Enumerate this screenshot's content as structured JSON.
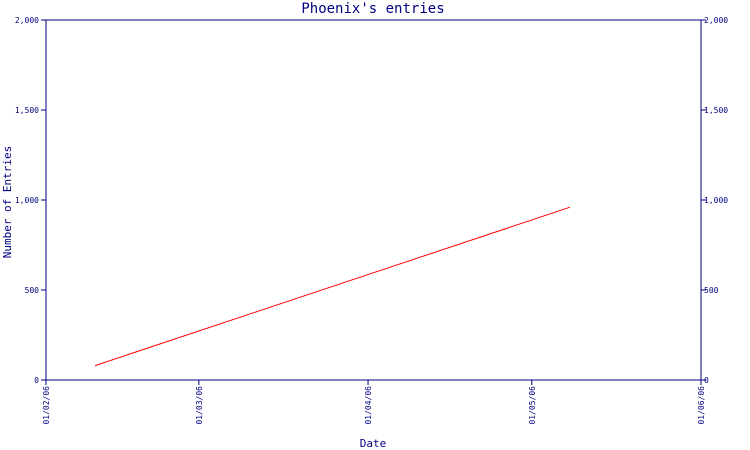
{
  "chart_data": {
    "type": "line",
    "title": "Phoenix's entries",
    "xlabel": "Date",
    "ylabel": "Number of Entries",
    "xlim": [
      "2006-02-01",
      "2006-06-01"
    ],
    "ylim": [
      0,
      2000
    ],
    "x_ticks": [
      "01/02/06",
      "01/03/06",
      "01/04/06",
      "01/05/06",
      "01/06/06"
    ],
    "y_ticks": [
      "0",
      "500",
      "1,000",
      "1,500",
      "2,000"
    ],
    "y_tick_values": [
      0,
      500,
      1000,
      1500,
      2000
    ],
    "grid": false,
    "series": [
      {
        "color": "#ff0000",
        "points": [
          {
            "x": "2006-02-10",
            "y": 80
          },
          {
            "x": "2006-05-08",
            "y": 960
          }
        ]
      }
    ]
  },
  "colors": {
    "axis": "#000080",
    "text": "#000080",
    "series": "#ff0000",
    "background": "#ffffff"
  }
}
